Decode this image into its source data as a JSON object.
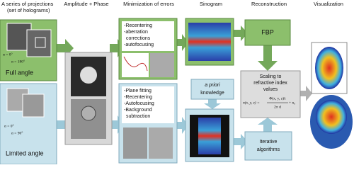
{
  "header": {
    "projections": [
      "A series of projections",
      "(set of holograms)"
    ],
    "amplitude_phase": "Amplitude + Phase",
    "minimization": "Minimization of errors",
    "sinogram": "Sinogram",
    "reconstruction": "Reconstruction",
    "visualization": "Visualization"
  },
  "full_angle": {
    "label": "Full angle",
    "angles": [
      "α = 0°",
      "α = 180°"
    ]
  },
  "limited_angle": {
    "label": "Limited angle",
    "angles": [
      "α = 0°",
      "α = 90°"
    ]
  },
  "full_corrections": [
    "-Recentering",
    "-aberration",
    "corrections",
    "-autofocusing"
  ],
  "limited_corrections": [
    "-Plane fitting",
    "-Recentering",
    "-Autofocusing",
    "-Background",
    "subtraction"
  ],
  "fbp": "FBP",
  "a_priori": {
    "emphasis": "a priori",
    "rest": "knowledge"
  },
  "scaling": [
    "Scaling to",
    "refractive index",
    "values"
  ],
  "formula": {
    "left": "n(x, y, z) =",
    "numerator": "Φ(x, y, z)λ",
    "denominator": "2π d",
    "right": "+ n₀"
  },
  "iterative": [
    "Iterative",
    "algorithms"
  ]
}
